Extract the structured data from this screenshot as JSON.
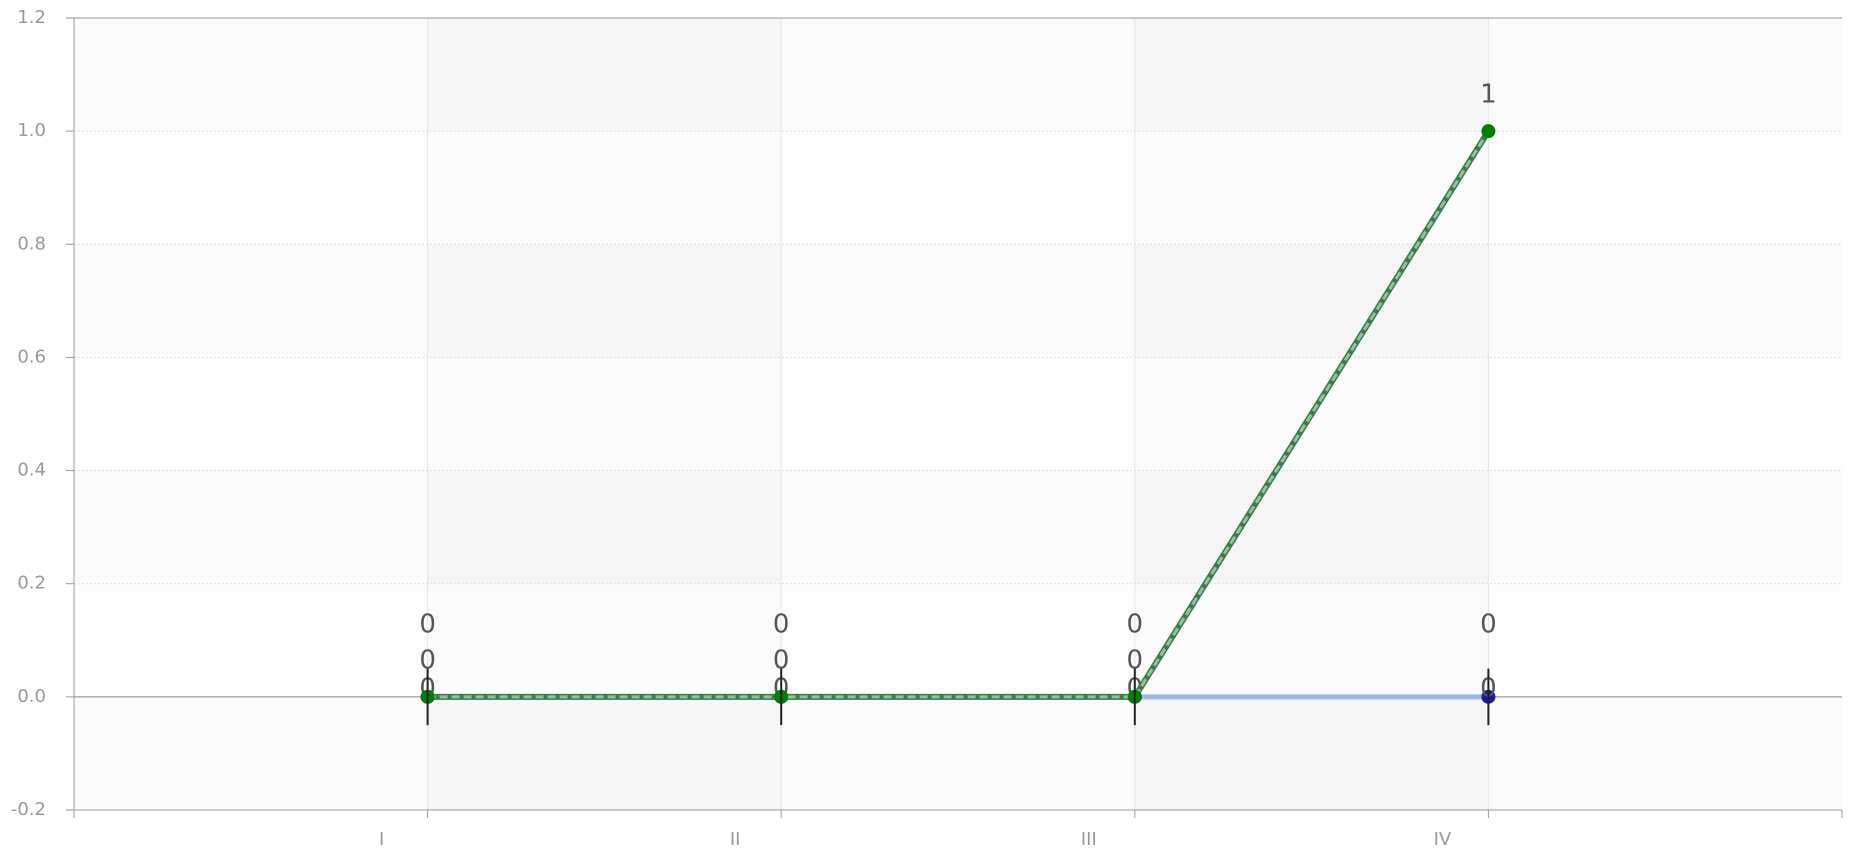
{
  "chart_data": {
    "type": "line",
    "categories": [
      "I",
      "II",
      "III",
      "IV"
    ],
    "series": [
      {
        "color": "#1a1aa6",
        "values": [
          0,
          0,
          0,
          0
        ]
      },
      {
        "color": "#008000",
        "dashed": true,
        "values": [
          0,
          0,
          0,
          1
        ]
      },
      {
        "color": "#222222",
        "values": [
          0,
          0,
          0,
          0
        ],
        "errors": [
          0.05,
          0.05,
          0.05,
          0.05
        ]
      }
    ],
    "ylim": [
      -0.2,
      1.2
    ],
    "yticks": [
      -0.2,
      {
        "value": 0,
        "label": "0.0"
      },
      0.2,
      0.4,
      0.6,
      0.8,
      {
        "value": 1,
        "label": "1.0"
      },
      1.2
    ],
    "grid": true
  }
}
